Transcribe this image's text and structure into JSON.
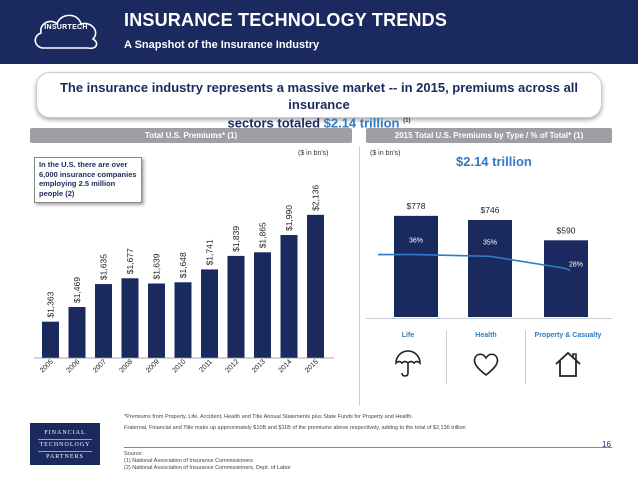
{
  "header": {
    "logo_text": "INSURTECH",
    "title": "INSURANCE TECHNOLOGY TRENDS",
    "subtitle": "A Snapshot of the Insurance Industry"
  },
  "callout": {
    "line1": "The insurance industry represents a massive market -- in 2015, premiums across all insurance",
    "line2_prefix": "sectors totaled ",
    "line2_value": "$2.14 trillion",
    "line2_sup": "(1)"
  },
  "left_panel": {
    "title": "Total U.S. Premiums* (1)",
    "unit_note": "($ in bn's)",
    "info_box": "In the U.S. there are over 6,000 insurance companies employing 2.5 million people (2)"
  },
  "right_panel": {
    "title": "2015 Total U.S. Premiums by Type / % of Total* (1)",
    "unit_note": "($ in bn's)",
    "total_label": "$2.14 trillion"
  },
  "chart_data": [
    {
      "type": "bar",
      "title": "Total U.S. Premiums* (1)",
      "categories": [
        "2005",
        "2006",
        "2007",
        "2008",
        "2009",
        "2010",
        "2011",
        "2012",
        "2013",
        "2014",
        "2015"
      ],
      "values": [
        1363,
        1469,
        1635,
        1677,
        1639,
        1648,
        1741,
        1839,
        1865,
        1990,
        2136
      ],
      "value_labels": [
        "$1,363",
        "$1,469",
        "$1,635",
        "$1,677",
        "$1,639",
        "$1,648",
        "$1,741",
        "$1,839",
        "$1,865",
        "$1,990",
        "$2,136"
      ],
      "ylim": [
        1100,
        2200
      ],
      "color": "#1b2a5e",
      "grid": false
    },
    {
      "type": "bar",
      "title": "2015 Total U.S. Premiums by Type / % of Total* (1)",
      "categories": [
        "Life",
        "Health",
        "Property & Casualty"
      ],
      "values": [
        778,
        746,
        590
      ],
      "value_labels": [
        "$778",
        "$746",
        "$590"
      ],
      "share_pct": [
        36,
        35,
        28
      ],
      "share_labels": [
        "36%",
        "35%",
        "28%"
      ],
      "ylim": [
        0,
        900
      ],
      "bar_color": "#1b2a5e",
      "line_color": "#2f7bc4",
      "grid": false
    }
  ],
  "icons": [
    "umbrella-icon",
    "heart-icon",
    "house-icon"
  ],
  "footnotes": {
    "f1": "*Premiums from Property, Life, Accident, Health and Title Annual Statements plus State Funds for Property and Health.",
    "f2": "Fraternal, Financial and Title make up approximately $10B and $11B of the premiums above respectively, adding to the total of $2,136 trillion",
    "source_label": "Source:",
    "s1": "(1) National Association of Insurance Commissioners",
    "s2": "(2) National Association of Insurance Commissioners, Dept. of Labor"
  },
  "ftp_logo": [
    "FINANCIAL",
    "TECHNOLOGY",
    "PARTNERS"
  ],
  "page_number": "16"
}
